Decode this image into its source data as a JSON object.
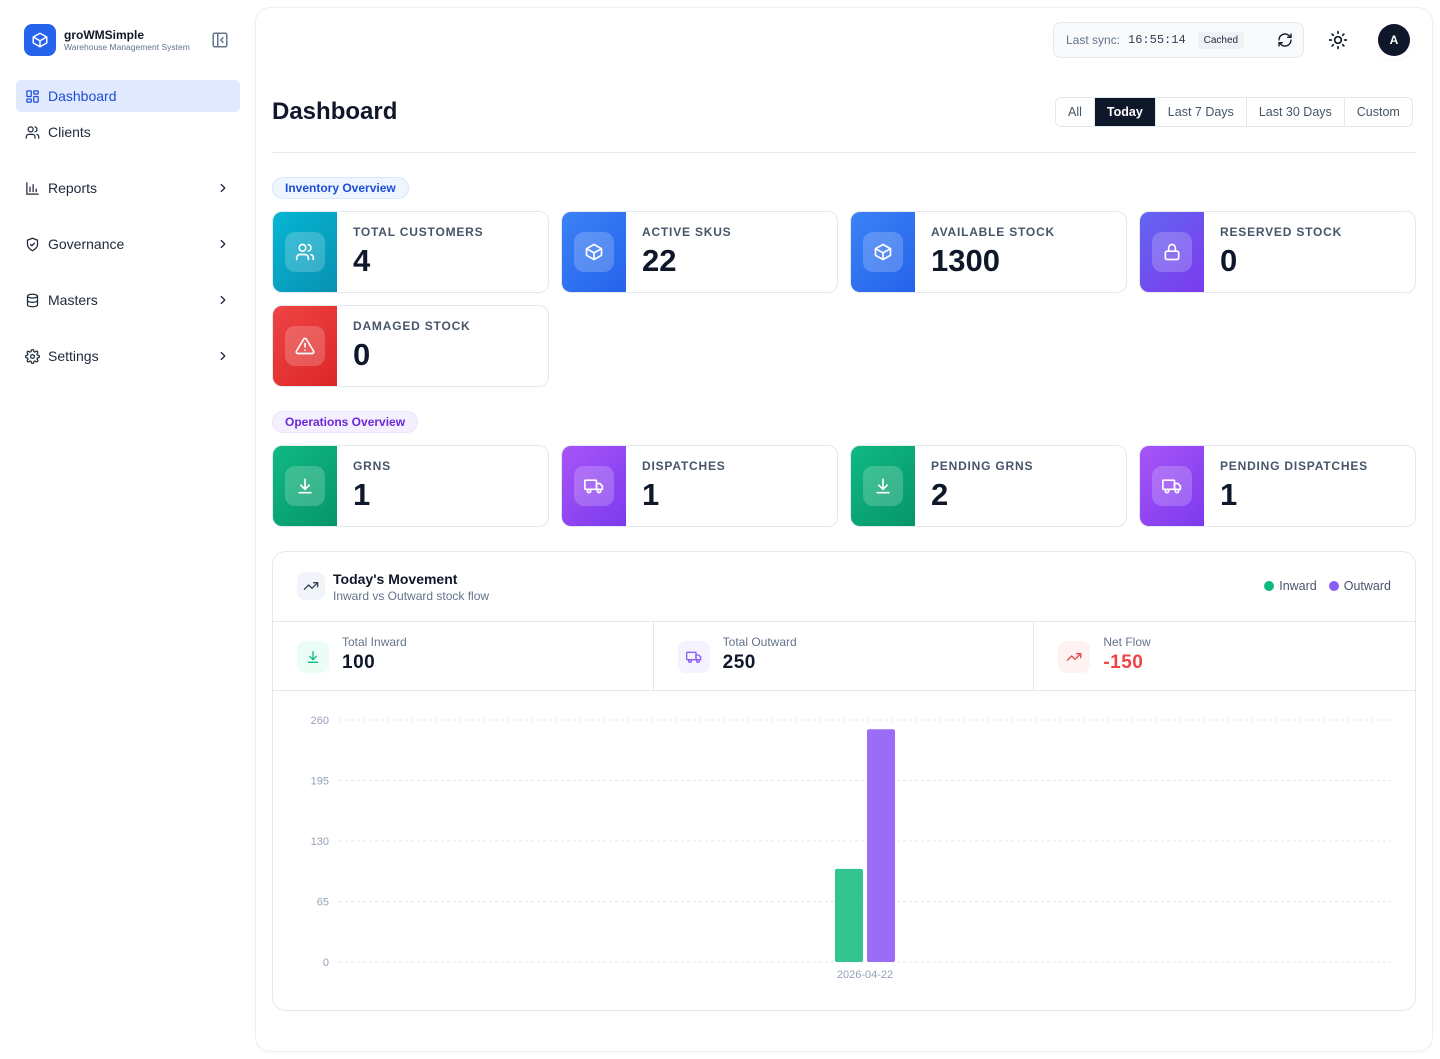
{
  "brand": {
    "name": "groWMSimple",
    "subtitle": "Warehouse Management System"
  },
  "sidebar": {
    "items": [
      {
        "label": "Dashboard",
        "icon": "layout-grid-icon",
        "active": true,
        "expandable": false
      },
      {
        "label": "Clients",
        "icon": "users-icon",
        "active": false,
        "expandable": false
      },
      {
        "label": "Reports",
        "icon": "bar-chart-icon",
        "active": false,
        "expandable": true
      },
      {
        "label": "Governance",
        "icon": "shield-check-icon",
        "active": false,
        "expandable": true
      },
      {
        "label": "Masters",
        "icon": "database-icon",
        "active": false,
        "expandable": true
      },
      {
        "label": "Settings",
        "icon": "gear-icon",
        "active": false,
        "expandable": true
      }
    ]
  },
  "topbar": {
    "sync_label": "Last sync:",
    "sync_time": "16:55:14",
    "cached_label": "Cached",
    "avatar_initial": "A"
  },
  "page": {
    "title": "Dashboard",
    "ranges": [
      "All",
      "Today",
      "Last 7 Days",
      "Last 30 Days",
      "Custom"
    ],
    "active_range": "Today"
  },
  "inventory": {
    "section_label": "Inventory Overview",
    "cards": [
      {
        "label": "TOTAL CUSTOMERS",
        "value": "4",
        "icon": "users-icon",
        "color": "#06b6d4"
      },
      {
        "label": "ACTIVE SKUS",
        "value": "22",
        "icon": "package-icon",
        "color": "#3b82f6"
      },
      {
        "label": "AVAILABLE STOCK",
        "value": "1300",
        "icon": "package-icon",
        "color": "#3b82f6"
      },
      {
        "label": "RESERVED STOCK",
        "value": "0",
        "icon": "lock-icon",
        "color": "#6366f1"
      },
      {
        "label": "DAMAGED STOCK",
        "value": "0",
        "icon": "alert-triangle-icon",
        "color": "#ef4444"
      }
    ]
  },
  "operations": {
    "section_label": "Operations Overview",
    "cards": [
      {
        "label": "GRNS",
        "value": "1",
        "icon": "download-icon",
        "color": "#10b981"
      },
      {
        "label": "DISPATCHES",
        "value": "1",
        "icon": "truck-icon",
        "color": "#a855f7"
      },
      {
        "label": "PENDING GRNS",
        "value": "2",
        "icon": "download-icon",
        "color": "#10b981"
      },
      {
        "label": "PENDING DISPATCHES",
        "value": "1",
        "icon": "truck-icon",
        "color": "#a855f7"
      }
    ]
  },
  "movement": {
    "title": "Today's Movement",
    "subtitle": "Inward vs Outward stock flow",
    "legend": [
      {
        "name": "Inward",
        "color": "#10b981"
      },
      {
        "name": "Outward",
        "color": "#8b5cf6"
      }
    ],
    "stats": [
      {
        "label": "Total Inward",
        "value": "100",
        "icon": "download-icon",
        "color": "#10b981"
      },
      {
        "label": "Total Outward",
        "value": "250",
        "icon": "truck-icon",
        "color": "#8b5cf6"
      },
      {
        "label": "Net Flow",
        "value": "-150",
        "icon": "trending-up-icon",
        "color": "#ef4444"
      }
    ]
  },
  "chart_data": {
    "type": "bar",
    "categories": [
      "2026-04-22"
    ],
    "series": [
      {
        "name": "Inward",
        "values": [
          100
        ],
        "color": "#34c48f"
      },
      {
        "name": "Outward",
        "values": [
          250
        ],
        "color": "#9b6cf6"
      }
    ],
    "yticks": [
      0,
      65,
      130,
      195,
      260
    ],
    "ylim": [
      0,
      260
    ],
    "grid": true
  }
}
